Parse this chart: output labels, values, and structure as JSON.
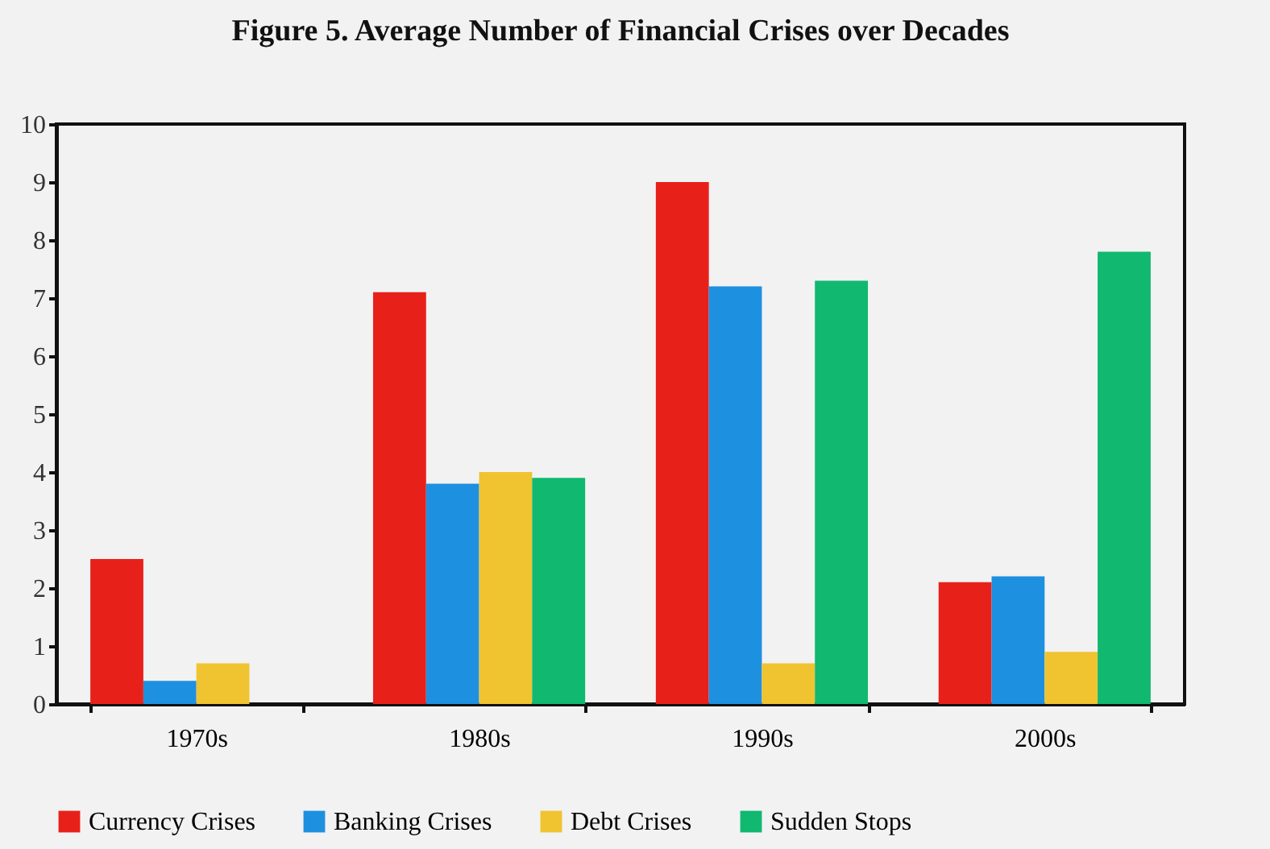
{
  "chart_data": {
    "type": "bar",
    "title": "Figure 5. Average Number of Financial Crises over Decades",
    "categories": [
      "1970s",
      "1980s",
      "1990s",
      "2000s"
    ],
    "series": [
      {
        "name": "Currency Crises",
        "color": "#e8201a",
        "values": [
          2.5,
          7.1,
          9.0,
          2.1
        ]
      },
      {
        "name": "Banking Crises",
        "color": "#1e90e0",
        "values": [
          0.4,
          3.8,
          7.2,
          2.2
        ]
      },
      {
        "name": "Debt Crises",
        "color": "#f0c330",
        "values": [
          0.7,
          4.0,
          0.7,
          0.9
        ]
      },
      {
        "name": "Sudden Stops",
        "color": "#10b870",
        "values": [
          null,
          3.9,
          7.3,
          7.8
        ]
      }
    ],
    "ylim": [
      0,
      10
    ],
    "yticks": [
      0,
      1,
      2,
      3,
      4,
      5,
      6,
      7,
      8,
      9,
      10
    ],
    "grid": false,
    "legend": "bottom"
  }
}
